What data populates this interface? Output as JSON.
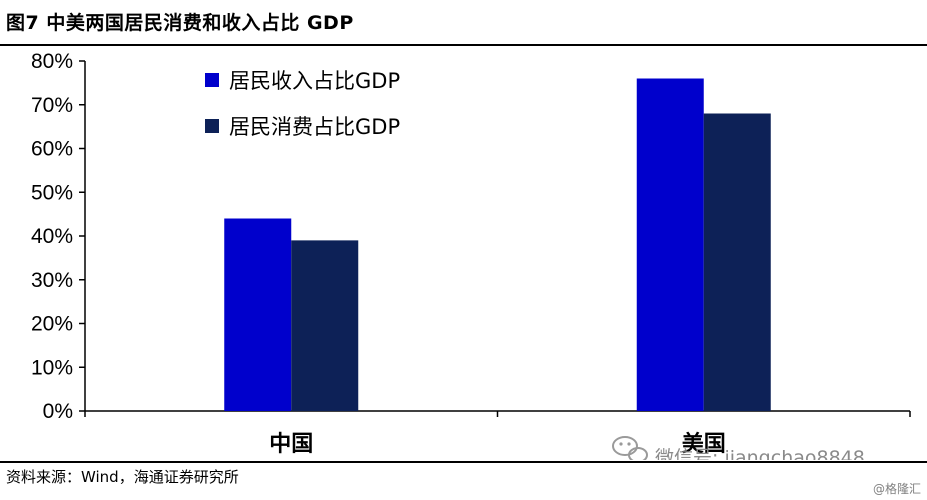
{
  "figure": {
    "title": "图7  中美两国居民消费和收入占比 GDP",
    "source_label": "资料来源：Wind，海通证券研究所"
  },
  "watermark": {
    "text": "微信号: jiangchao8848",
    "icon": "wechat-icon",
    "credit": "@格隆汇"
  },
  "chart_data": {
    "type": "bar",
    "categories": [
      "中国",
      "美国"
    ],
    "series": [
      {
        "name": "居民收入占比GDP",
        "values": [
          44,
          76
        ],
        "color": "#0000CC"
      },
      {
        "name": "居民消费占比GDP",
        "values": [
          39,
          68
        ],
        "color": "#0D2157"
      }
    ],
    "yticks": [
      "0%",
      "10%",
      "20%",
      "30%",
      "40%",
      "50%",
      "60%",
      "70%",
      "80%"
    ],
    "ylim": [
      0,
      80
    ],
    "legend_position": "top-left",
    "grid": false
  }
}
